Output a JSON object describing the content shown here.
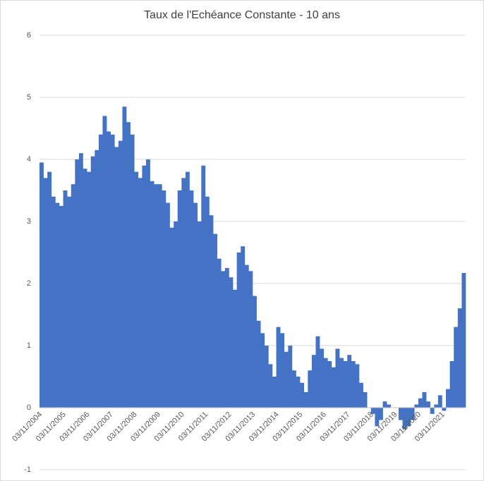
{
  "chart_data": {
    "type": "bar",
    "title": "Taux de l'Echéance Constante - 10 ans",
    "categories": [
      "03/11/2004",
      null,
      null,
      null,
      null,
      null,
      "03/11/2005",
      null,
      null,
      null,
      null,
      null,
      "03/11/2006",
      null,
      null,
      null,
      null,
      null,
      "03/11/2007",
      null,
      null,
      null,
      null,
      null,
      "03/11/2008",
      null,
      null,
      null,
      null,
      null,
      "03/11/2009",
      null,
      null,
      null,
      null,
      null,
      "03/11/2010",
      null,
      null,
      null,
      null,
      null,
      "03/11/2011",
      null,
      null,
      null,
      null,
      null,
      "03/11/2012",
      null,
      null,
      null,
      null,
      null,
      "03/11/2013",
      null,
      null,
      null,
      null,
      null,
      "03/11/2014",
      null,
      null,
      null,
      null,
      null,
      "03/11/2015",
      null,
      null,
      null,
      null,
      null,
      "03/11/2016",
      null,
      null,
      null,
      null,
      null,
      "03/11/2017",
      null,
      null,
      null,
      null,
      null,
      "03/11/2018",
      null,
      null,
      null,
      null,
      null,
      "03/11/2019",
      null,
      null,
      null,
      null,
      null,
      "03/11/2020",
      null,
      null,
      null,
      null,
      null,
      "03/11/2021",
      null,
      null,
      null,
      null,
      null
    ],
    "values": [
      3.95,
      3.7,
      3.8,
      3.4,
      3.3,
      3.25,
      3.5,
      3.4,
      3.6,
      4.0,
      4.1,
      3.85,
      3.8,
      4.05,
      4.15,
      4.4,
      4.7,
      4.45,
      4.4,
      4.2,
      4.3,
      4.85,
      4.6,
      4.4,
      3.8,
      3.7,
      3.9,
      4.0,
      3.65,
      3.6,
      3.6,
      3.5,
      3.3,
      2.9,
      3.0,
      3.5,
      3.7,
      3.8,
      3.5,
      3.3,
      3.0,
      3.9,
      3.4,
      3.1,
      2.8,
      2.4,
      2.2,
      2.25,
      2.1,
      1.9,
      2.5,
      2.6,
      2.3,
      2.2,
      1.8,
      1.4,
      1.2,
      1.0,
      0.7,
      0.5,
      1.3,
      1.2,
      0.9,
      1.0,
      0.6,
      0.5,
      0.4,
      0.25,
      0.6,
      0.85,
      1.15,
      0.95,
      0.8,
      0.75,
      0.65,
      0.95,
      0.8,
      0.75,
      0.85,
      0.75,
      0.7,
      0.4,
      0.25,
      0.0,
      -0.1,
      -0.3,
      -0.2,
      0.1,
      0.05,
      0.0,
      0.0,
      -0.2,
      -0.35,
      -0.3,
      -0.2,
      0.05,
      0.15,
      0.25,
      0.1,
      -0.1,
      0.05,
      0.2,
      -0.05,
      0.3,
      0.75,
      1.3,
      1.6,
      2.17
    ],
    "color": "#4472c4",
    "ylim": [
      -1,
      6
    ],
    "yticks": [
      -1,
      0,
      1,
      2,
      3,
      4,
      5,
      6
    ],
    "grid": true
  }
}
